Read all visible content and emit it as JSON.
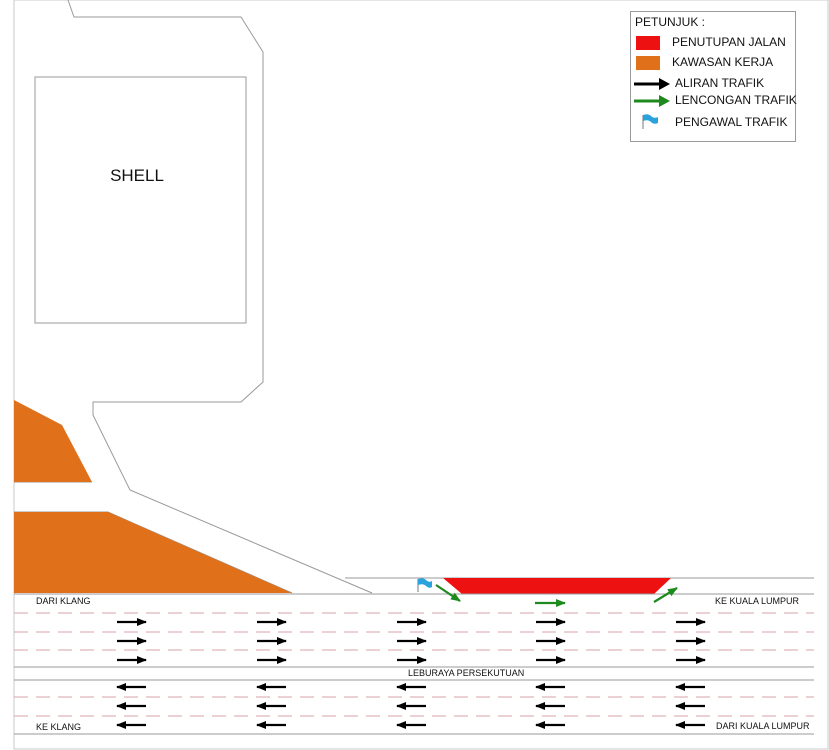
{
  "building": {
    "label": "SHELL"
  },
  "road": {
    "labels": {
      "dari_klang": "DARI KLANG",
      "ke_kuala_lumpur": "KE KUALA LUMPUR",
      "leburaya": "LEBURAYA PERSEKUTUAN",
      "ke_klang": "KE KLANG",
      "dari_kuala_lumpur": "DARI KUALA LUMPUR"
    }
  },
  "legend": {
    "title": "PETUNJUK :",
    "items": [
      {
        "key": "closure",
        "label": "PENUTUPAN JALAN"
      },
      {
        "key": "work",
        "label": "KAWASAN KERJA"
      },
      {
        "key": "traffic",
        "label": "ALIRAN TRAFIK"
      },
      {
        "key": "detour",
        "label": "LENCONGAN TRAFIK"
      },
      {
        "key": "marshal",
        "label": "PENGAWAL TRAFIK"
      }
    ]
  },
  "colors": {
    "closure": "#ee1111",
    "work_zone": "#e0701a",
    "traffic_arrow": "#000000",
    "detour_arrow": "#1e8a1e",
    "marshal_flag": "#2aa3dd",
    "lane_dash": "#d9a3a8",
    "outline": "#9a9a9a"
  },
  "icons": {
    "traffic": "black-arrow-icon",
    "detour": "green-arrow-icon",
    "marshal": "flag-icon"
  }
}
